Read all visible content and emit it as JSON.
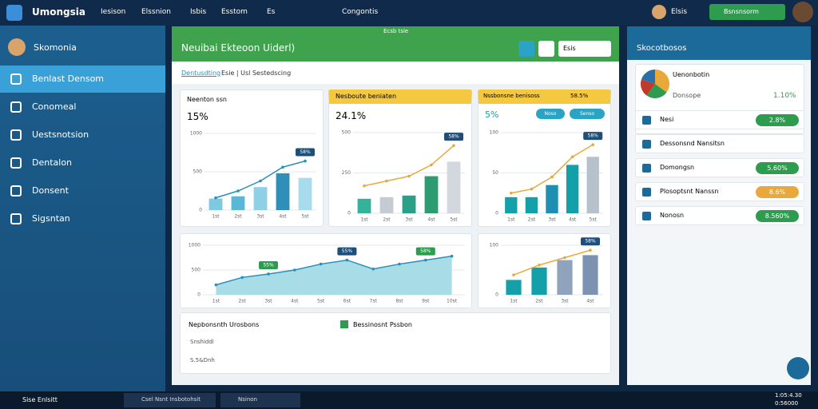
{
  "topbar": {
    "app_name": "Umongsia",
    "menu": [
      "Iesison",
      "Elssnion",
      "Isbis",
      "Esstom",
      "Es",
      "Congontis"
    ],
    "user": "Elsis",
    "button": "Bsnsnsorm"
  },
  "sidebar": {
    "profile": "Skomonia",
    "items": [
      "Benlast Densom",
      "Conomeal",
      "Uestsnotsion",
      "Dentalon",
      "Donsent",
      "Sigsntan"
    ]
  },
  "main": {
    "window_title": "Ecsb tsie",
    "title": "Neuibai Ekteoon Uiderl)",
    "select": "Esis",
    "tabs": [
      "Dentusdting",
      "Esie | Usl Sestedscing"
    ],
    "cards": [
      {
        "title": "Neenton ssn",
        "value": "15%",
        "chart": {
          "type": "bar",
          "categories": [
            "1st",
            "2st",
            "3st",
            "4st",
            "5st"
          ],
          "values": [
            150,
            180,
            300,
            480,
            420
          ],
          "colors": [
            "#7cc9e0",
            "#5bb7d6",
            "#8fd0e6",
            "#2f8fb8",
            "#a7dcec"
          ],
          "line": [
            160,
            250,
            380,
            560,
            640
          ],
          "line_color": "#2a8fb8",
          "badge": "58%",
          "ylim": [
            0,
            1000
          ],
          "yticks": [
            0,
            500,
            1000
          ]
        }
      },
      {
        "title": "Nesboute beniaten",
        "value": "24.1%",
        "chart": {
          "type": "bar",
          "categories": [
            "1st",
            "2st",
            "3st",
            "4st",
            "5st"
          ],
          "values": [
            90,
            100,
            110,
            230,
            320
          ],
          "colors": [
            "#35b39a",
            "#c5cbd3",
            "#2aa089",
            "#2e9c73",
            "#d3d8de"
          ],
          "line": [
            170,
            200,
            230,
            300,
            420
          ],
          "line_color": "#e9a93a",
          "badge": "58%",
          "ylim": [
            0,
            500
          ],
          "yticks": [
            0,
            250,
            500
          ]
        }
      },
      {
        "title": "Nssbonsne benisoss",
        "badge_top": "58.5%",
        "value": "5%",
        "pill": "Noso",
        "pill2": "Senso",
        "chart": {
          "type": "bar",
          "categories": [
            "1st",
            "2st",
            "3st",
            "4st",
            "5st"
          ],
          "values": [
            20,
            20,
            35,
            60,
            70
          ],
          "colors": [
            "#14a0a8",
            "#14a0a8",
            "#1e8fb0",
            "#14a0a8",
            "#b7c1cc"
          ],
          "line": [
            25,
            30,
            45,
            70,
            85
          ],
          "line_color": "#e9a93a",
          "badge": "58%",
          "ylim": [
            0,
            100
          ],
          "yticks": [
            0,
            50,
            100
          ]
        }
      }
    ],
    "wide_chart": {
      "type": "area",
      "categories": [
        "1st",
        "2st",
        "3st",
        "4st",
        "5st",
        "6st",
        "7st",
        "8st",
        "9st",
        "10st"
      ],
      "values": [
        200,
        350,
        420,
        500,
        620,
        700,
        520,
        620,
        700,
        780
      ],
      "line_color": "#2a8fb8",
      "area_color": "#a8dde8",
      "badges": [
        "55%",
        "55%",
        "58%"
      ],
      "ylim": [
        0,
        1000
      ],
      "yticks": [
        0,
        500,
        1000
      ]
    },
    "small_chart": {
      "type": "bar",
      "categories": [
        "1st",
        "2st",
        "3st",
        "4st"
      ],
      "values": [
        30,
        55,
        70,
        80
      ],
      "colors": [
        "#14a0a8",
        "#14a0a8",
        "#8fa3bd",
        "#7b92b0"
      ],
      "line": [
        40,
        60,
        75,
        90
      ],
      "line_color": "#e9a93a",
      "badge": "58%",
      "ylim": [
        0,
        100
      ],
      "yticks": [
        0,
        100
      ]
    },
    "list": {
      "left_title": "Nepbonsnth Urosbons",
      "right_title": "Bessinosnt Pssbon",
      "items": [
        "Snshiddl",
        "S.5&Dnh"
      ]
    }
  },
  "right_panel": {
    "title": "Skocotbosos",
    "summary": {
      "title": "Uenonbotin",
      "label": "Donsope",
      "value": "1.10%",
      "pie": {
        "values": [
          35,
          25,
          20,
          20
        ],
        "colors": [
          "#e9a93a",
          "#2e9c4f",
          "#c0392b",
          "#2a6fa8"
        ]
      }
    },
    "rows": [
      {
        "label": "Nesi",
        "value": "2.8%",
        "color": "#2e9c4f"
      },
      {
        "label": "Dessonsnd Nansitsn"
      },
      {
        "label": "Domongsn",
        "value": "5.60%",
        "color": "#2e9c4f"
      },
      {
        "label": "Plosoptsnt Nanssn",
        "value": "8.6%",
        "color": "#e9a93a"
      },
      {
        "label": "Nonosn",
        "value": "8.560%",
        "color": "#2e9c4f"
      }
    ]
  },
  "taskbar": {
    "start": "Sise Enlsitt",
    "apps": [
      "Csel Nsnt Insbotohsit",
      "Nsinon"
    ],
    "time": "1:05:4.30",
    "date": "0:56000"
  }
}
